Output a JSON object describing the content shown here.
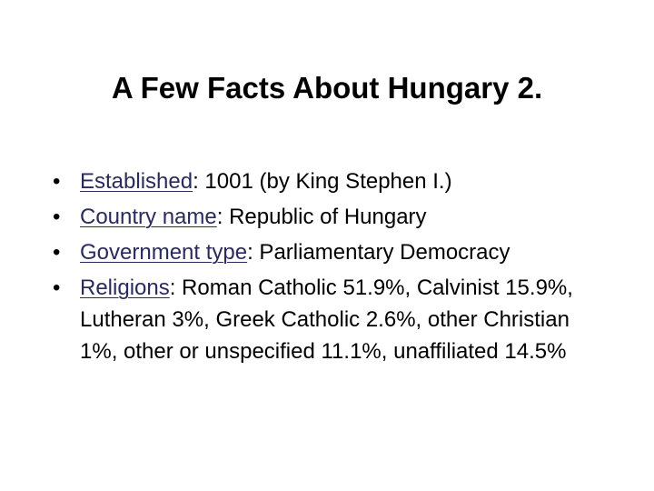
{
  "slide": {
    "title": "A Few Facts About Hungary 2.",
    "bullets": [
      {
        "label": "Established",
        "text": ": 1001 (by King Stephen I.)"
      },
      {
        "label": "Country name",
        "text": ": Republic of Hungary"
      },
      {
        "label": "Government type",
        "text": ": Parliamentary Democracy"
      },
      {
        "label": "Religions",
        "text": ": Roman Catholic 51.9%, Calvinist 15.9%, Lutheran 3%, Greek Catholic 2.6%, other Christian 1%, other or unspecified 11.1%, unaffiliated 14.5%"
      }
    ]
  }
}
